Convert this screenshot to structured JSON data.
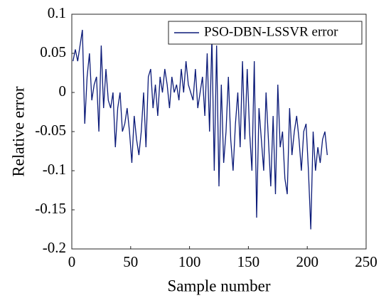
{
  "chart_data": {
    "type": "line",
    "xlabel": "Sample number",
    "ylabel": "Relative error",
    "xlim": [
      0,
      250
    ],
    "xticks": [
      0,
      50,
      100,
      150,
      200,
      250
    ],
    "ylim": [
      -0.2,
      0.1
    ],
    "yticks": [
      0.1,
      0.05,
      0,
      -0.05,
      -0.1,
      -0.15,
      -0.2
    ],
    "legend": "northeast",
    "x": [
      1,
      3,
      5,
      7,
      9,
      11,
      13,
      15,
      17,
      19,
      21,
      23,
      25,
      27,
      29,
      31,
      33,
      35,
      37,
      39,
      41,
      43,
      45,
      47,
      49,
      51,
      53,
      55,
      57,
      59,
      61,
      63,
      65,
      67,
      69,
      71,
      73,
      75,
      77,
      79,
      81,
      83,
      85,
      87,
      89,
      91,
      93,
      95,
      97,
      99,
      101,
      103,
      105,
      107,
      109,
      111,
      113,
      115,
      117,
      119,
      121,
      123,
      125,
      127,
      129,
      131,
      133,
      135,
      137,
      139,
      141,
      143,
      145,
      147,
      149,
      151,
      153,
      155,
      157,
      159,
      161,
      163,
      165,
      167,
      169,
      171,
      173,
      175,
      177,
      179,
      181,
      183,
      185,
      187,
      189,
      191,
      193,
      195,
      197,
      199,
      201,
      203,
      205,
      207,
      209,
      211,
      213,
      215,
      217
    ],
    "series": [
      {
        "name": "PSO-DBN-LSSVR error",
        "color": "#0b1a78",
        "values": [
          0.04,
          0.055,
          0.04,
          0.06,
          0.08,
          -0.04,
          0.02,
          0.05,
          -0.01,
          0.01,
          0.02,
          -0.05,
          0.06,
          -0.02,
          0.03,
          -0.01,
          -0.02,
          0.0,
          -0.07,
          -0.02,
          0.0,
          -0.05,
          -0.04,
          -0.02,
          -0.05,
          -0.09,
          -0.03,
          -0.06,
          -0.08,
          -0.05,
          0.0,
          -0.07,
          0.02,
          0.03,
          -0.02,
          0.01,
          -0.03,
          0.02,
          0.0,
          0.03,
          0.01,
          -0.02,
          0.02,
          0.0,
          0.01,
          -0.01,
          0.03,
          0.0,
          0.04,
          0.01,
          0.0,
          -0.01,
          0.03,
          -0.02,
          0.0,
          0.02,
          -0.03,
          0.05,
          -0.05,
          0.07,
          -0.1,
          0.06,
          -0.12,
          0.01,
          -0.09,
          -0.05,
          0.02,
          -0.06,
          -0.1,
          -0.04,
          0.0,
          -0.07,
          0.04,
          -0.06,
          0.03,
          -0.05,
          -0.1,
          0.04,
          -0.16,
          -0.02,
          -0.06,
          -0.1,
          0.0,
          -0.06,
          -0.12,
          -0.03,
          -0.13,
          0.01,
          -0.07,
          -0.05,
          -0.11,
          -0.13,
          -0.02,
          -0.08,
          -0.05,
          -0.03,
          -0.06,
          -0.1,
          -0.05,
          -0.04,
          -0.1,
          -0.175,
          -0.05,
          -0.1,
          -0.07,
          -0.09,
          -0.06,
          -0.05,
          -0.08
        ]
      }
    ]
  }
}
